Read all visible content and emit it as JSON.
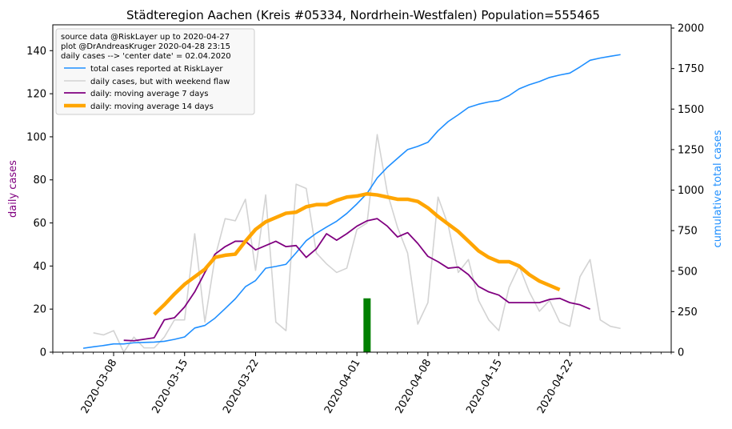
{
  "chart_data": {
    "type": "line",
    "title": "Städteregion Aachen (Kreis #05334, Nordrhein-Westfalen) Population=555465",
    "ylabel_left": "daily cases",
    "ylabel_right": "cumulative total cases",
    "xlabel": "",
    "start_date": "2020-03-05",
    "ylim_left": [
      0,
      152
    ],
    "ylim_right": [
      0,
      2020
    ],
    "xlim": [
      "2020-03-02",
      "2020-05-02"
    ],
    "x_tick_labels": [
      "2020-03-08",
      "2020-03-15",
      "2020-03-22",
      "2020-04-01",
      "2020-04-08",
      "2020-04-15",
      "2020-04-22"
    ],
    "y_left_ticks": [
      0,
      20,
      40,
      60,
      80,
      100,
      120,
      140
    ],
    "y_right_ticks": [
      0,
      250,
      500,
      750,
      1000,
      1250,
      1500,
      1750,
      2000
    ],
    "info_lines": [
      "source data @RiskLayer up to 2020-04-27",
      "plot @DrAndreasKruger 2020-04-28 23:15",
      "daily cases --> 'center date' = 02.04.2020"
    ],
    "legend_position": "top-left",
    "colors": {
      "total": "#1f8fff",
      "daily": "#d3d3d3",
      "ma7": "#800080",
      "ma14": "#ffa500",
      "center": "#008000",
      "left_axis_label": "#800080",
      "right_axis_label": "#1f8fff"
    },
    "center_date": "2020-04-02",
    "center_bar_value": 25,
    "series": [
      {
        "name": "total cases reported at RiskLayer",
        "axis": "right",
        "x": [
          "2020-03-05",
          "2020-03-06",
          "2020-03-07",
          "2020-03-08",
          "2020-03-09",
          "2020-03-10",
          "2020-03-11",
          "2020-03-12",
          "2020-03-13",
          "2020-03-14",
          "2020-03-15",
          "2020-03-16",
          "2020-03-17",
          "2020-03-18",
          "2020-03-19",
          "2020-03-20",
          "2020-03-21",
          "2020-03-22",
          "2020-03-23",
          "2020-03-24",
          "2020-03-25",
          "2020-03-26",
          "2020-03-27",
          "2020-03-28",
          "2020-03-29",
          "2020-03-30",
          "2020-03-31",
          "2020-04-01",
          "2020-04-02",
          "2020-04-03",
          "2020-04-04",
          "2020-04-05",
          "2020-04-06",
          "2020-04-07",
          "2020-04-08",
          "2020-04-09",
          "2020-04-10",
          "2020-04-11",
          "2020-04-12",
          "2020-04-13",
          "2020-04-14",
          "2020-04-15",
          "2020-04-16",
          "2020-04-17",
          "2020-04-18",
          "2020-04-19",
          "2020-04-20",
          "2020-04-21",
          "2020-04-22",
          "2020-04-23",
          "2020-04-24",
          "2020-04-25",
          "2020-04-26",
          "2020-04-27"
        ],
        "values": [
          24,
          33,
          41,
          51,
          51,
          58,
          60,
          62,
          67,
          79,
          94,
          149,
          165,
          210,
          269,
          329,
          404,
          442,
          518,
          529,
          542,
          613,
          688,
          734,
          772,
          808,
          856,
          915,
          980,
          1075,
          1141,
          1196,
          1250,
          1270,
          1295,
          1366,
          1423,
          1465,
          1510,
          1530,
          1544,
          1553,
          1583,
          1625,
          1650,
          1670,
          1695,
          1710,
          1722,
          1760,
          1801,
          1815,
          1826,
          1836
        ]
      },
      {
        "name": "daily cases, but with weekend flaw",
        "axis": "left",
        "x": [
          "2020-03-06",
          "2020-03-07",
          "2020-03-08",
          "2020-03-09",
          "2020-03-10",
          "2020-03-11",
          "2020-03-12",
          "2020-03-13",
          "2020-03-14",
          "2020-03-15",
          "2020-03-16",
          "2020-03-17",
          "2020-03-18",
          "2020-03-19",
          "2020-03-20",
          "2020-03-21",
          "2020-03-22",
          "2020-03-23",
          "2020-03-24",
          "2020-03-25",
          "2020-03-26",
          "2020-03-27",
          "2020-03-28",
          "2020-03-29",
          "2020-03-30",
          "2020-03-31",
          "2020-04-01",
          "2020-04-02",
          "2020-04-03",
          "2020-04-04",
          "2020-04-05",
          "2020-04-06",
          "2020-04-07",
          "2020-04-08",
          "2020-04-09",
          "2020-04-10",
          "2020-04-11",
          "2020-04-12",
          "2020-04-13",
          "2020-04-14",
          "2020-04-15",
          "2020-04-16",
          "2020-04-17",
          "2020-04-18",
          "2020-04-19",
          "2020-04-20",
          "2020-04-21",
          "2020-04-22",
          "2020-04-23",
          "2020-04-24",
          "2020-04-25",
          "2020-04-26",
          "2020-04-27"
        ],
        "values": [
          9,
          8,
          10,
          0,
          7,
          2,
          2,
          7,
          15,
          15,
          55,
          14,
          44,
          62,
          61,
          71,
          38,
          73,
          14,
          10,
          78,
          76,
          46,
          41,
          37,
          39,
          57,
          60,
          101,
          74,
          58,
          46,
          13,
          23,
          72,
          59,
          37,
          43,
          24,
          15,
          10,
          30,
          40,
          28,
          19,
          24,
          14,
          12,
          35,
          43,
          15,
          12,
          11
        ]
      },
      {
        "name": "daily: moving average 7 days",
        "axis": "left",
        "x": [
          "2020-03-09",
          "2020-03-10",
          "2020-03-11",
          "2020-03-12",
          "2020-03-13",
          "2020-03-14",
          "2020-03-15",
          "2020-03-16",
          "2020-03-17",
          "2020-03-18",
          "2020-03-19",
          "2020-03-20",
          "2020-03-21",
          "2020-03-22",
          "2020-03-23",
          "2020-03-24",
          "2020-03-25",
          "2020-03-26",
          "2020-03-27",
          "2020-03-28",
          "2020-03-29",
          "2020-03-30",
          "2020-03-31",
          "2020-04-01",
          "2020-04-02",
          "2020-04-03",
          "2020-04-04",
          "2020-04-05",
          "2020-04-06",
          "2020-04-07",
          "2020-04-08",
          "2020-04-09",
          "2020-04-10",
          "2020-04-11",
          "2020-04-12",
          "2020-04-13",
          "2020-04-14",
          "2020-04-15",
          "2020-04-16",
          "2020-04-17",
          "2020-04-18",
          "2020-04-19",
          "2020-04-20",
          "2020-04-21",
          "2020-04-22",
          "2020-04-23",
          "2020-04-24"
        ],
        "values": [
          5.5,
          5.3,
          6,
          6.7,
          15,
          16,
          21,
          28,
          37,
          45.5,
          49,
          51.5,
          51.5,
          47.5,
          49.5,
          51.5,
          49,
          49.5,
          44,
          48,
          55,
          52,
          55,
          58.5,
          61,
          62,
          58.5,
          53.5,
          55.5,
          50.5,
          44.5,
          42,
          39,
          39.5,
          36,
          30.5,
          28,
          26.5,
          23,
          23,
          23,
          23,
          24.5,
          25,
          23,
          22,
          20
        ]
      },
      {
        "name": "daily: moving average 14 days",
        "axis": "left",
        "x": [
          "2020-03-12",
          "2020-03-13",
          "2020-03-14",
          "2020-03-15",
          "2020-03-16",
          "2020-03-17",
          "2020-03-18",
          "2020-03-19",
          "2020-03-20",
          "2020-03-21",
          "2020-03-22",
          "2020-03-23",
          "2020-03-24",
          "2020-03-25",
          "2020-03-26",
          "2020-03-27",
          "2020-03-28",
          "2020-03-29",
          "2020-03-30",
          "2020-03-31",
          "2020-04-01",
          "2020-04-02",
          "2020-04-03",
          "2020-04-04",
          "2020-04-05",
          "2020-04-06",
          "2020-04-07",
          "2020-04-08",
          "2020-04-09",
          "2020-04-10",
          "2020-04-11",
          "2020-04-12",
          "2020-04-13",
          "2020-04-14",
          "2020-04-15",
          "2020-04-16",
          "2020-04-17",
          "2020-04-18",
          "2020-04-19",
          "2020-04-20",
          "2020-04-21"
        ],
        "values": [
          17.5,
          22,
          27,
          31.5,
          35,
          38.5,
          44,
          45,
          45.5,
          51.5,
          57,
          60.5,
          62.5,
          64.5,
          65,
          67.5,
          68.5,
          68.5,
          70.5,
          72,
          72.5,
          73.5,
          73,
          72,
          71,
          71,
          70,
          67,
          63,
          59.5,
          56,
          51.5,
          47,
          44,
          42,
          42,
          40,
          36,
          33,
          31,
          29
        ]
      }
    ]
  }
}
